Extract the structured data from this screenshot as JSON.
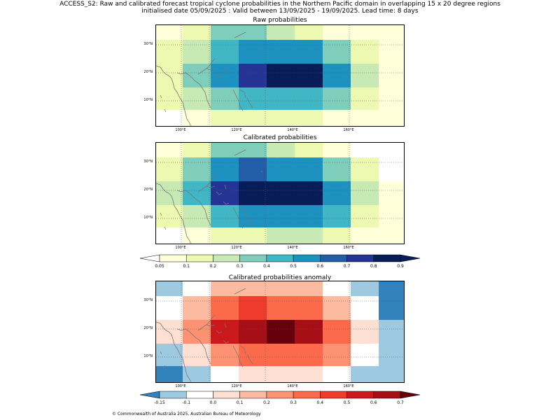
{
  "header": {
    "line1": "ACCESS_S2: Raw and calibrated forecast tropical cyclone probabilities in the Northern Pacific domain in overlapping 15 x 20 degree regions",
    "line2": "initialised date 05/09/2025 :  Valid between 13/09/2025 - 19/09/2025. Lead time: 8 days"
  },
  "panels": [
    {
      "id": "raw",
      "title": "Raw probabilities",
      "colors": [
        [
          "#ffffd9",
          "#edf8b1",
          "#7fcdbb",
          "#7fcdbb",
          "#c7e9b4",
          "#edf8b1",
          "#ffffd9",
          "#ffffd9",
          "#ffffd9"
        ],
        [
          "#edf8b1",
          "#c7e9b4",
          "#41b6c4",
          "#1d91c0",
          "#1d91c0",
          "#1d91c0",
          "#7fcdbb",
          "#edf8b1",
          "#ffffd9"
        ],
        [
          "#edf8b1",
          "#7fcdbb",
          "#1d91c0",
          "#253494",
          "#081d58",
          "#081d58",
          "#1d91c0",
          "#c7e9b4",
          "#ffffd9"
        ],
        [
          "#edf8b1",
          "#c7e9b4",
          "#7fcdbb",
          "#41b6c4",
          "#41b6c4",
          "#41b6c4",
          "#7fcdbb",
          "#edf8b1",
          "#ffffd9"
        ],
        [
          "#ffffff",
          "#ffffd9",
          "#edf8b1",
          "#edf8b1",
          "#edf8b1",
          "#edf8b1",
          "#ffffd9",
          "#ffffd9",
          "#ffffd9"
        ]
      ]
    },
    {
      "id": "calibrated",
      "title": "Calibrated probabilities",
      "colors": [
        [
          "#ffffd9",
          "#edf8b1",
          "#7fcdbb",
          "#7fcdbb",
          "#c7e9b4",
          "#edf8b1",
          "#ffffd9",
          "#ffffff",
          "#ffffff"
        ],
        [
          "#edf8b1",
          "#7fcdbb",
          "#1d91c0",
          "#225ea8",
          "#1d91c0",
          "#1d91c0",
          "#7fcdbb",
          "#edf8b1",
          "#ffffff"
        ],
        [
          "#c7e9b4",
          "#41b6c4",
          "#253494",
          "#081d58",
          "#081d58",
          "#081d58",
          "#1d91c0",
          "#c7e9b4",
          "#ffffd9"
        ],
        [
          "#edf8b1",
          "#c7e9b4",
          "#41b6c4",
          "#1d91c0",
          "#1d91c0",
          "#1d91c0",
          "#41b6c4",
          "#edf8b1",
          "#ffffd9"
        ],
        [
          "#ffffff",
          "#ffffd9",
          "#edf8b1",
          "#edf8b1",
          "#c7e9b4",
          "#c7e9b4",
          "#edf8b1",
          "#ffffd9",
          "#ffffd9"
        ]
      ]
    },
    {
      "id": "anomaly",
      "title": "Calibrated probabilities anomaly",
      "colors": [
        [
          "#9ecae1",
          "#ffffff",
          "#fcbba1",
          "#fcbba1",
          "#fcbba1",
          "#fcbba1",
          "#ffffff",
          "#9ecae1",
          "#3182bd"
        ],
        [
          "#ffffff",
          "#fcbba1",
          "#fb6a4a",
          "#ef3b2c",
          "#fb6a4a",
          "#fb6a4a",
          "#fcbba1",
          "#ffffff",
          "#3182bd"
        ],
        [
          "#fee0d2",
          "#fc9272",
          "#cb181d",
          "#a50f15",
          "#67000d",
          "#a50f15",
          "#fb6a4a",
          "#fee0d2",
          "#9ecae1"
        ],
        [
          "#9ecae1",
          "#fee0d2",
          "#fc9272",
          "#fb6a4a",
          "#fb6a4a",
          "#fb6a4a",
          "#fc9272",
          "#ffffff",
          "#9ecae1"
        ],
        [
          "#3182bd",
          "#9ecae1",
          "#ffffff",
          "#fee0d2",
          "#fee0d2",
          "#fee0d2",
          "#ffffff",
          "#9ecae1",
          "#9ecae1"
        ]
      ]
    }
  ],
  "lat_labels": [
    "30°N",
    "20°N",
    "10°N"
  ],
  "lon_labels": [
    "100°E",
    "120°E",
    "140°E",
    "160°E"
  ],
  "colorbar_prob": {
    "colors": [
      "#ffffd9",
      "#edf8b1",
      "#c7e9b4",
      "#7fcdbb",
      "#41b6c4",
      "#1d91c0",
      "#225ea8",
      "#253494",
      "#081d58"
    ],
    "under": "#ffffff",
    "over": "#081d58",
    "ticks": [
      "0.05",
      "0.1",
      "0.2",
      "0.3",
      "0.4",
      "0.5",
      "0.6",
      "0.7",
      "0.8",
      "0.9"
    ]
  },
  "colorbar_anom": {
    "colors": [
      "#9ecae1",
      "#ffffff",
      "#fee0d2",
      "#fcbba1",
      "#fc9272",
      "#fb6a4a",
      "#ef3b2c",
      "#cb181d",
      "#a50f15"
    ],
    "under": "#3182bd",
    "over": "#67000d",
    "ticks": [
      "-0.15",
      "-0.1",
      "0.0",
      "0.1",
      "0.2",
      "0.3",
      "0.4",
      "0.5",
      "0.6",
      "0.7"
    ]
  },
  "footer": "© Commonwealth of Australia 2025, Australian Bureau of Meteorology"
}
